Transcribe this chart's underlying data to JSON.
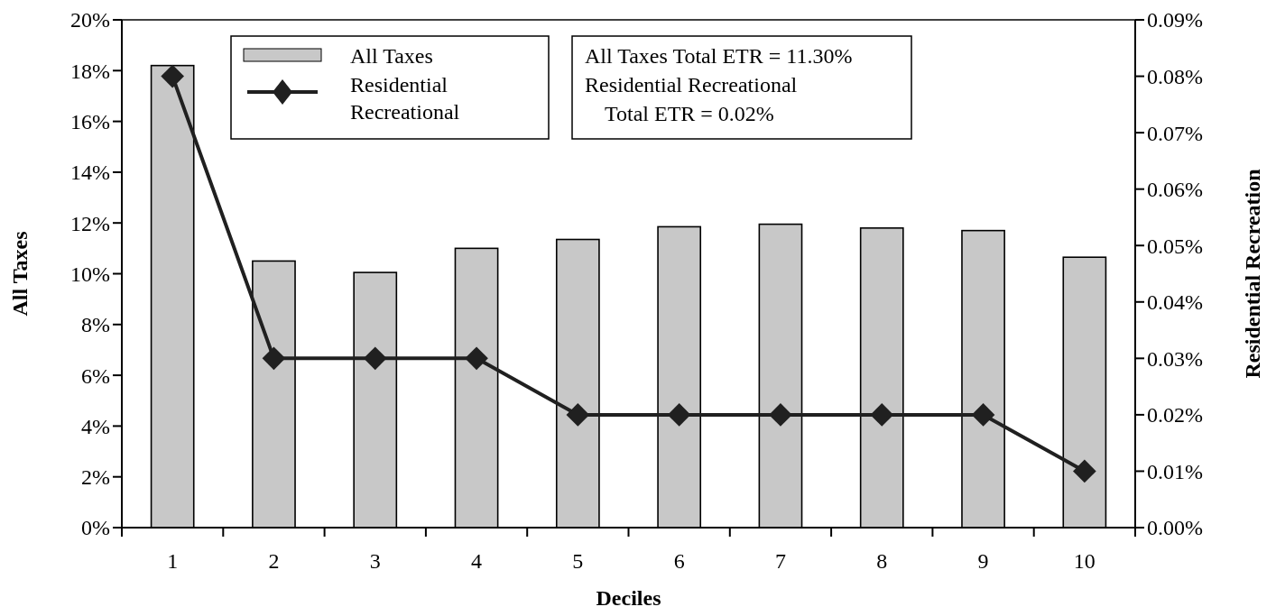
{
  "chart_data": {
    "type": "bar",
    "xlabel": "Deciles",
    "ylabel": "All Taxes",
    "y2label": "Residential Recreation",
    "categories": [
      "1",
      "2",
      "3",
      "4",
      "5",
      "6",
      "7",
      "8",
      "9",
      "10"
    ],
    "series": [
      {
        "name": "All Taxes",
        "color": "#c8c8c8",
        "values": [
          18.2,
          10.5,
          10.05,
          11.0,
          11.35,
          11.85,
          11.95,
          11.8,
          11.7,
          10.65
        ]
      },
      {
        "name": "Residential Recreational",
        "type": "line",
        "axis": "y2",
        "color": "#202020",
        "marker": "diamond",
        "values": [
          0.08,
          0.03,
          0.03,
          0.03,
          0.02,
          0.02,
          0.02,
          0.02,
          0.02,
          0.01
        ]
      }
    ],
    "ylim": [
      0,
      20
    ],
    "yticks": [
      {
        "value": 0,
        "label": "0%"
      },
      {
        "value": 2,
        "label": "2%"
      },
      {
        "value": 4,
        "label": "4%"
      },
      {
        "value": 6,
        "label": "6%"
      },
      {
        "value": 8,
        "label": "8%"
      },
      {
        "value": 10,
        "label": "10%"
      },
      {
        "value": 12,
        "label": "12%"
      },
      {
        "value": 14,
        "label": "14%"
      },
      {
        "value": 16,
        "label": "16%"
      },
      {
        "value": 18,
        "label": "18%"
      },
      {
        "value": 20,
        "label": "20%"
      }
    ],
    "y2lim": [
      0,
      0.09
    ],
    "y2ticks": [
      {
        "value": 0,
        "label": "0.00%"
      },
      {
        "value": 0.01,
        "label": "0.01%"
      },
      {
        "value": 0.02,
        "label": "0.02%"
      },
      {
        "value": 0.03,
        "label": "0.03%"
      },
      {
        "value": 0.04,
        "label": "0.04%"
      },
      {
        "value": 0.05,
        "label": "0.05%"
      },
      {
        "value": 0.06,
        "label": "0.06%"
      },
      {
        "value": 0.07,
        "label": "0.07%"
      },
      {
        "value": 0.08,
        "label": "0.08%"
      },
      {
        "value": 0.09,
        "label": "0.09%"
      }
    ],
    "legend": "top left",
    "annotations": [
      "All Taxes Total ETR = 11.30%",
      "Residential Recreational",
      "Total ETR = 0.02%"
    ]
  }
}
